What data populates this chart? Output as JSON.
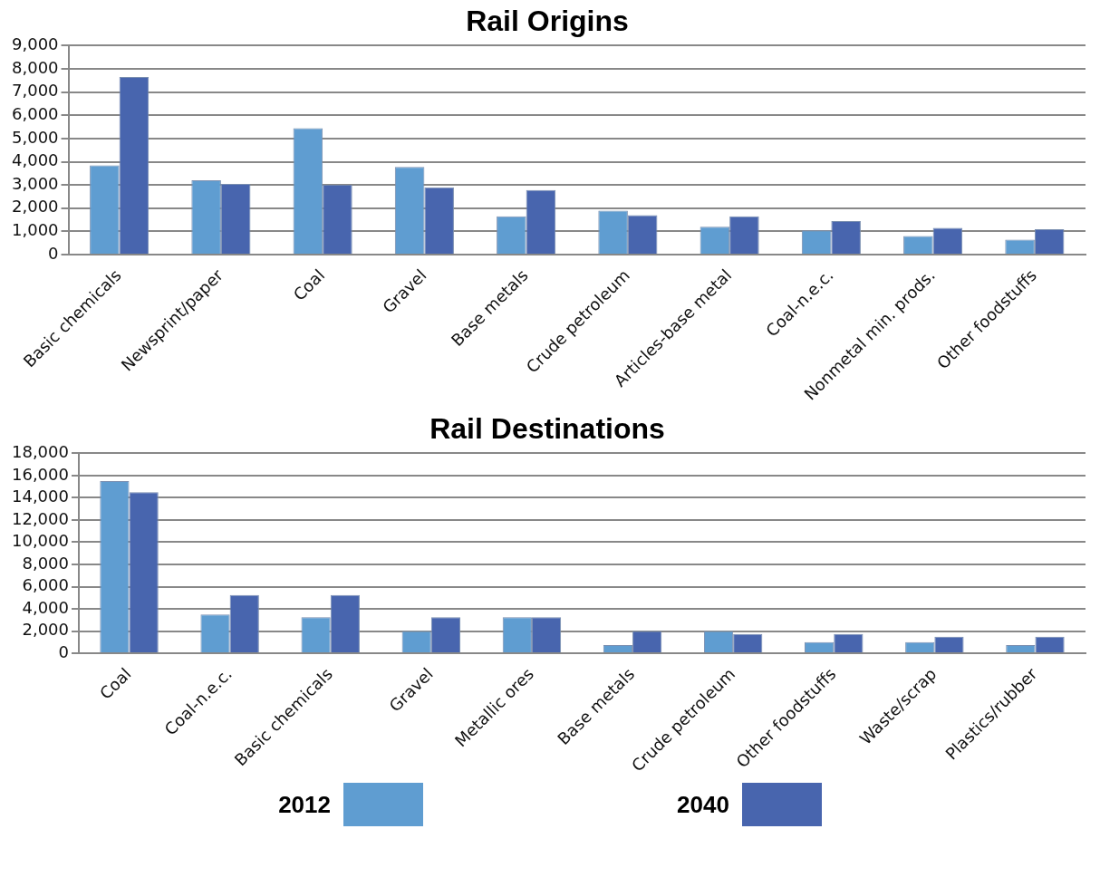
{
  "chart_data": [
    {
      "type": "bar",
      "title": "Rail Origins",
      "categories": [
        "Basic chemicals",
        "Newsprint/paper",
        "Coal",
        "Gravel",
        "Base metals",
        "Crude petroleum",
        "Articles-base metal",
        "Coal-n.e.c.",
        "Nonmetal min. prods.",
        "Other foodstuffs"
      ],
      "series": [
        {
          "name": "2012",
          "color": "#5f9dd1",
          "values": [
            3850,
            3200,
            5450,
            3780,
            1650,
            1900,
            1200,
            1050,
            800,
            650
          ]
        },
        {
          "name": "2040",
          "color": "#4865ae",
          "values": [
            7650,
            3050,
            3020,
            2900,
            2780,
            1700,
            1650,
            1450,
            1150,
            1100
          ]
        }
      ],
      "ylim": [
        0,
        9000
      ],
      "yticks": [
        {
          "value": 0,
          "label": "0"
        },
        {
          "value": 1000,
          "label": "1,000"
        },
        {
          "value": 2000,
          "label": "2,000"
        },
        {
          "value": 3000,
          "label": "3,000"
        },
        {
          "value": 4000,
          "label": "4,000"
        },
        {
          "value": 5000,
          "label": "5,000"
        },
        {
          "value": 6000,
          "label": "6,000"
        },
        {
          "value": 7000,
          "label": "7,000"
        },
        {
          "value": 8000,
          "label": "8,000"
        },
        {
          "value": 9000,
          "label": "9,000"
        }
      ],
      "grid": "y",
      "legend": "bottom"
    },
    {
      "type": "bar",
      "title": "Rail Destinations",
      "categories": [
        "Coal",
        "Coal-n.e.c.",
        "Basic chemicals",
        "Gravel",
        "Metallic ores",
        "Base metals",
        "Crude petroleum",
        "Other foodstuffs",
        "Waste/scrap",
        "Plastics/rubber"
      ],
      "series": [
        {
          "name": "2012",
          "color": "#5f9dd1",
          "values": [
            15500,
            3500,
            3250,
            2000,
            3250,
            750,
            2000,
            1000,
            1000,
            750
          ]
        },
        {
          "name": "2040",
          "color": "#4865ae",
          "values": [
            14500,
            5250,
            5250,
            3250,
            3250,
            2000,
            1750,
            1750,
            1500,
            1500
          ]
        }
      ],
      "ylim": [
        0,
        18000
      ],
      "yticks": [
        {
          "value": 0,
          "label": "0"
        },
        {
          "value": 2000,
          "label": "2,000"
        },
        {
          "value": 4000,
          "label": "4,000"
        },
        {
          "value": 6000,
          "label": "6,000"
        },
        {
          "value": 8000,
          "label": "8,000"
        },
        {
          "value": 10000,
          "label": "10,000"
        },
        {
          "value": 12000,
          "label": "12,000"
        },
        {
          "value": 14000,
          "label": "14,000"
        },
        {
          "value": 16000,
          "label": "16,000"
        },
        {
          "value": 18000,
          "label": "18,000"
        }
      ],
      "grid": "y",
      "legend": "bottom"
    }
  ]
}
